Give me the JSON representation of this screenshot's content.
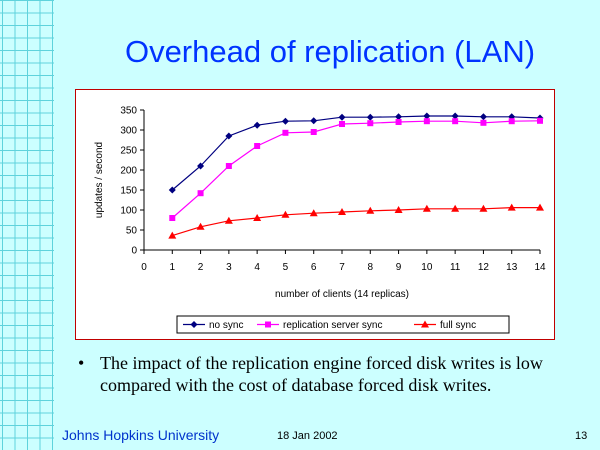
{
  "slide": {
    "title": "Overhead of replication (LAN)",
    "bullet_marker": "•",
    "bullet": "The impact of the replication engine forced disk writes is low compared with the cost of database forced disk writes.",
    "footer_org": "Johns Hopkins University",
    "footer_date": "18 Jan 2002",
    "page_number": "13"
  },
  "chart_data": {
    "type": "line",
    "title": "",
    "xlabel": "number of clients (14 replicas)",
    "ylabel": "updates / second",
    "xlim": [
      0,
      14
    ],
    "ylim": [
      0,
      350
    ],
    "x_ticks": [
      0,
      1,
      2,
      3,
      4,
      5,
      6,
      7,
      8,
      9,
      10,
      11,
      12,
      13,
      14
    ],
    "y_ticks": [
      0,
      50,
      100,
      150,
      200,
      250,
      300,
      350
    ],
    "grid": false,
    "legend_position": "bottom",
    "x": [
      1,
      2,
      3,
      4,
      5,
      6,
      7,
      8,
      9,
      10,
      11,
      12,
      13,
      14
    ],
    "series": [
      {
        "name": "no sync",
        "color": "#000080",
        "marker": "diamond",
        "values": [
          150,
          210,
          285,
          312,
          322,
          323,
          332,
          332,
          333,
          335,
          335,
          333,
          333,
          330
        ]
      },
      {
        "name": "replication server sync",
        "color": "#ff00ff",
        "marker": "square",
        "values": [
          80,
          142,
          210,
          260,
          293,
          295,
          315,
          317,
          320,
          322,
          322,
          318,
          322,
          323
        ]
      },
      {
        "name": "full sync",
        "color": "#ff0000",
        "marker": "triangle",
        "values": [
          36,
          58,
          73,
          80,
          88,
          92,
          95,
          98,
          100,
          103,
          103,
          103,
          106,
          106
        ]
      }
    ]
  }
}
